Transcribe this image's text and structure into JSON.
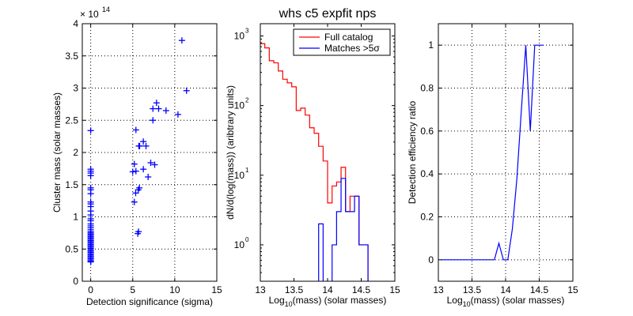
{
  "title": "whs c5 expfit nps",
  "chart_data": [
    {
      "type": "scatter",
      "xlabel": "Detection significance (sigma)",
      "ylabel": "Cluster mass (solar masses)",
      "y_multiplier_label": "× 10",
      "y_multiplier_exp": "14",
      "xlim": [
        -1,
        15
      ],
      "ylim": [
        0,
        4
      ],
      "grid": true,
      "marker": "+",
      "color": "#0000ff",
      "xticks": [
        0,
        5,
        10,
        15
      ],
      "xtick_labels": [
        "0",
        "5",
        "10",
        "15"
      ],
      "yticks": [
        0,
        0.5,
        1,
        1.5,
        2,
        2.5,
        3,
        3.5,
        4
      ],
      "ytick_labels": [
        "0",
        "0.5",
        "1",
        "1.5",
        "2",
        "2.5",
        "3",
        "3.5",
        "4"
      ],
      "points": [
        [
          0,
          2.34
        ],
        [
          0,
          1.74
        ],
        [
          0,
          1.71
        ],
        [
          0,
          1.68
        ],
        [
          0,
          1.64
        ],
        [
          0,
          1.45
        ],
        [
          0,
          1.42
        ],
        [
          0,
          1.36
        ],
        [
          0,
          1.23
        ],
        [
          0,
          1.2
        ],
        [
          0,
          1.16
        ],
        [
          0,
          1.09
        ],
        [
          0,
          1.03
        ],
        [
          0,
          0.97
        ],
        [
          0,
          0.94
        ],
        [
          0,
          0.89
        ],
        [
          0,
          0.86
        ],
        [
          0,
          0.83
        ],
        [
          0,
          0.8
        ],
        [
          0,
          0.77
        ],
        [
          0,
          0.75
        ],
        [
          0,
          0.73
        ],
        [
          0,
          0.71
        ],
        [
          0,
          0.69
        ],
        [
          0,
          0.67
        ],
        [
          0,
          0.65
        ],
        [
          0,
          0.63
        ],
        [
          0,
          0.61
        ],
        [
          0,
          0.59
        ],
        [
          0,
          0.57
        ],
        [
          0,
          0.55
        ],
        [
          0,
          0.53
        ],
        [
          0,
          0.51
        ],
        [
          0,
          0.49
        ],
        [
          0,
          0.47
        ],
        [
          0,
          0.45
        ],
        [
          0,
          0.43
        ],
        [
          0,
          0.41
        ],
        [
          0,
          0.39
        ],
        [
          0,
          0.37
        ],
        [
          0,
          0.35
        ],
        [
          0,
          0.33
        ],
        [
          0,
          0.31
        ],
        [
          0,
          0.3
        ],
        [
          10.85,
          3.74
        ],
        [
          11.4,
          2.96
        ],
        [
          7.83,
          2.77
        ],
        [
          7.4,
          2.68
        ],
        [
          8.08,
          2.68
        ],
        [
          8.96,
          2.65
        ],
        [
          10.38,
          2.59
        ],
        [
          7.4,
          2.5
        ],
        [
          5.38,
          2.35
        ],
        [
          6.26,
          2.17
        ],
        [
          5.73,
          2.1
        ],
        [
          5.82,
          2.1
        ],
        [
          6.58,
          2.1
        ],
        [
          5.19,
          1.82
        ],
        [
          7.14,
          1.84
        ],
        [
          7.61,
          1.81
        ],
        [
          6.26,
          1.74
        ],
        [
          5.0,
          1.7
        ],
        [
          5.38,
          1.71
        ],
        [
          6.83,
          1.62
        ],
        [
          5.79,
          1.45
        ],
        [
          5.66,
          1.42
        ],
        [
          5.35,
          1.37
        ],
        [
          5.19,
          1.23
        ],
        [
          5.69,
          0.77
        ],
        [
          5.6,
          0.74
        ]
      ]
    },
    {
      "type": "histogram",
      "xlabel_base": "Log",
      "xlabel_sub": "10",
      "xlabel_rest": "(mass) (solar masses)",
      "ylabel": "dN/d(log(mass)) (aribtrary units)",
      "xlim": [
        13,
        15
      ],
      "ylim": [
        0.3,
        1500
      ],
      "yscale": "log",
      "xticks": [
        13,
        13.5,
        14,
        14.5,
        15
      ],
      "xtick_labels": [
        "13",
        "13.5",
        "14",
        "14.5",
        "15"
      ],
      "yticks": [
        1,
        10,
        100,
        1000
      ],
      "ytick_base": "10",
      "ytick_exps": [
        "0",
        "1",
        "2",
        "3"
      ],
      "bin_start": 13,
      "bin_width": 0.0667,
      "series": [
        {
          "name": "Full catalog",
          "color": "#ff0000",
          "values": [
            776,
            674,
            441,
            411,
            314,
            239,
            212,
            186,
            85,
            92,
            73,
            48,
            40,
            26,
            16,
            4,
            7,
            8,
            13,
            3,
            5,
            5,
            1,
            1
          ]
        },
        {
          "name": "Matches >5σ",
          "color": "#0000ff",
          "values": [
            0,
            0,
            0,
            0,
            0,
            0,
            0,
            0,
            0,
            0,
            0,
            0,
            0,
            2,
            0,
            0,
            1,
            3,
            9,
            3,
            3,
            5,
            1,
            1
          ]
        }
      ],
      "legend_position": "top-right"
    },
    {
      "type": "line",
      "xlabel_base": "Log",
      "xlabel_sub": "10",
      "xlabel_rest": "(mass) (solar masses)",
      "ylabel": "Detection efficiency ratio",
      "xlim": [
        13,
        15
      ],
      "ylim": [
        -0.1,
        1.1
      ],
      "grid": true,
      "color": "#0000ff",
      "xticks": [
        13,
        13.5,
        14,
        14.5,
        15
      ],
      "xtick_labels": [
        "13",
        "13.5",
        "14",
        "14.5",
        "15"
      ],
      "yticks": [
        0,
        0.2,
        0.4,
        0.6,
        0.8,
        1
      ],
      "ytick_labels": [
        "0",
        "0.2",
        "0.4",
        "0.6",
        "0.8",
        "1"
      ],
      "x": [
        13.033,
        13.1,
        13.167,
        13.233,
        13.3,
        13.367,
        13.433,
        13.5,
        13.567,
        13.633,
        13.7,
        13.767,
        13.833,
        13.9,
        13.967,
        14.033,
        14.1,
        14.167,
        14.233,
        14.3,
        14.367,
        14.433,
        14.5,
        14.567
      ],
      "y": [
        0,
        0,
        0,
        0,
        0,
        0,
        0,
        0,
        0,
        0,
        0,
        0,
        0,
        0.077,
        0,
        0,
        0.143,
        0.375,
        0.692,
        1,
        0.6,
        1,
        1,
        1
      ]
    }
  ]
}
